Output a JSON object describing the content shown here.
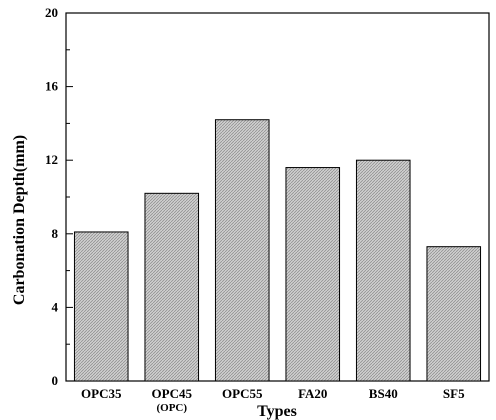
{
  "chart_data": {
    "type": "bar",
    "xlabel": "Types",
    "ylabel": "Carbonation Depth(mm)",
    "ylim": [
      0,
      20
    ],
    "yticks": [
      0,
      4,
      8,
      12,
      16,
      20
    ],
    "categories": [
      "OPC35",
      "OPC45",
      "OPC55",
      "FA20",
      "BS40",
      "SF5"
    ],
    "category_sublabels": [
      "",
      "(OPC)",
      "",
      "",
      "",
      ""
    ],
    "values": [
      8.1,
      10.2,
      14.2,
      11.6,
      12.0,
      7.3
    ],
    "grid": false,
    "legend": "none",
    "bar_fill": "#c8c8c8",
    "bar_stroke": "#000000"
  }
}
